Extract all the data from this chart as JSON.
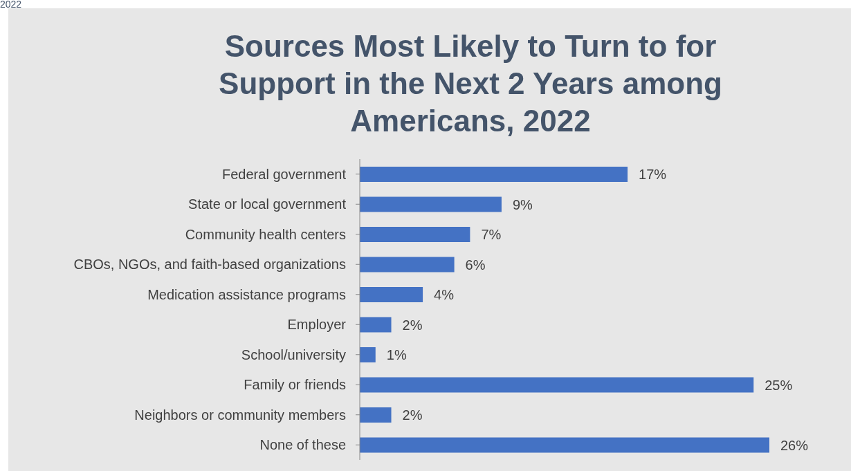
{
  "chart_data": {
    "type": "bar",
    "orientation": "horizontal",
    "title": "Sources Most Likely to Turn to for Support in the Next 2 Years among Americans, 2022",
    "annotations": [
      "2022"
    ],
    "categories": [
      "Federal government",
      "State or local government",
      "Community health centers",
      "CBOs, NGOs, and faith-based organizations",
      "Medication assistance programs",
      "Employer",
      "School/university",
      "Family or friends",
      "Neighbors or community members",
      "None of these"
    ],
    "values": [
      17,
      9,
      7,
      6,
      4,
      2,
      1,
      25,
      2,
      26
    ],
    "value_labels": [
      "17%",
      "9%",
      "7%",
      "6%",
      "4%",
      "2%",
      "1%",
      "25%",
      "2%",
      "26%"
    ],
    "color": "#4472c4"
  }
}
